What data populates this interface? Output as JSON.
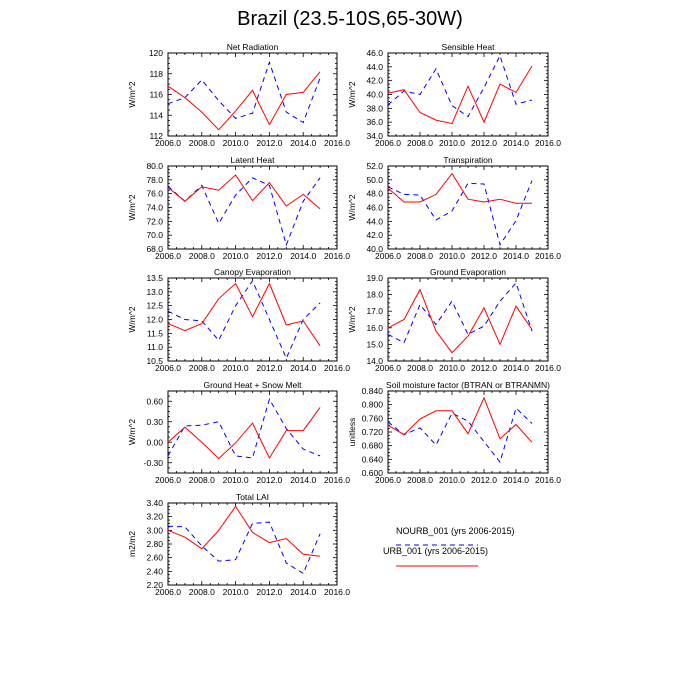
{
  "title": "Brazil (23.5-10S,65-30W)",
  "legend": [
    {
      "label": "NOURB_001 (yrs 2006-2015)",
      "style": "dashed",
      "color": "#0000ff"
    },
    {
      "label": "URB_001 (yrs 2006-2015)",
      "style": "solid",
      "color": "#ff0000"
    }
  ],
  "chart_data": [
    {
      "type": "line",
      "title": "Net Radiation",
      "ylabel": "W/m^2",
      "x": [
        2006,
        2007,
        2008,
        2009,
        2010,
        2011,
        2012,
        2013,
        2014,
        2015
      ],
      "xlim": [
        2006,
        2016
      ],
      "xticks": [
        "2006.0",
        "2008.0",
        "2010.0",
        "2012.0",
        "2014.0",
        "2016.0"
      ],
      "ylim": [
        112,
        120
      ],
      "yticks": [
        "112",
        "114",
        "116",
        "118",
        "120"
      ],
      "series": [
        {
          "name": "NOURB_001 (yrs 2006-2015)",
          "values": [
            115.1,
            115.7,
            117.4,
            115.4,
            113.7,
            114.2,
            119.1,
            114.3,
            113.3,
            117.6
          ]
        },
        {
          "name": "URB_001 (yrs 2006-2015)",
          "values": [
            116.8,
            115.7,
            114.3,
            112.6,
            114.4,
            116.4,
            113.1,
            116.0,
            116.2,
            118.2
          ]
        }
      ]
    },
    {
      "type": "line",
      "title": "Sensible Heat",
      "ylabel": "W/m^2",
      "x": [
        2006,
        2007,
        2008,
        2009,
        2010,
        2011,
        2012,
        2013,
        2014,
        2015
      ],
      "xlim": [
        2006,
        2016
      ],
      "xticks": [
        "2006.0",
        "2008.0",
        "2010.0",
        "2012.0",
        "2014.0",
        "2016.0"
      ],
      "ylim": [
        34,
        46
      ],
      "yticks": [
        "34.0",
        "36.0",
        "38.0",
        "40.0",
        "42.0",
        "44.0",
        "46.0"
      ],
      "series": [
        {
          "name": "NOURB_001 (yrs 2006-2015)",
          "values": [
            38.5,
            40.5,
            40.0,
            43.7,
            38.4,
            36.8,
            41.0,
            45.6,
            38.6,
            39.2
          ]
        },
        {
          "name": "URB_001 (yrs 2006-2015)",
          "values": [
            40.2,
            40.7,
            37.4,
            36.3,
            35.8,
            41.2,
            36.0,
            41.5,
            40.3,
            44.1
          ]
        }
      ]
    },
    {
      "type": "line",
      "title": "Latent Heat",
      "ylabel": "W/m^2",
      "x": [
        2006,
        2007,
        2008,
        2009,
        2010,
        2011,
        2012,
        2013,
        2014,
        2015
      ],
      "xlim": [
        2006,
        2016
      ],
      "xticks": [
        "2006.0",
        "2008.0",
        "2010.0",
        "2012.0",
        "2014.0",
        "2016.0"
      ],
      "ylim": [
        68,
        80
      ],
      "yticks": [
        "68.0",
        "70.0",
        "72.0",
        "74.0",
        "76.0",
        "78.0",
        "80.0"
      ],
      "series": [
        {
          "name": "NOURB_001 (yrs 2006-2015)",
          "values": [
            77.1,
            74.9,
            77.2,
            71.7,
            75.8,
            78.3,
            77.2,
            68.6,
            74.9,
            78.3
          ]
        },
        {
          "name": "URB_001 (yrs 2006-2015)",
          "values": [
            76.9,
            74.9,
            77.0,
            76.5,
            78.7,
            75.0,
            77.6,
            74.2,
            75.9,
            73.8
          ]
        }
      ]
    },
    {
      "type": "line",
      "title": "Transpiration",
      "ylabel": "W/m^2",
      "x": [
        2006,
        2007,
        2008,
        2009,
        2010,
        2011,
        2012,
        2013,
        2014,
        2015
      ],
      "xlim": [
        2006,
        2016
      ],
      "xticks": [
        "2006.0",
        "2008.0",
        "2010.0",
        "2012.0",
        "2014.0",
        "2016.0"
      ],
      "ylim": [
        40,
        52
      ],
      "yticks": [
        "40.0",
        "42.0",
        "44.0",
        "46.0",
        "48.0",
        "50.0",
        "52.0"
      ],
      "series": [
        {
          "name": "NOURB_001 (yrs 2006-2015)",
          "values": [
            49.0,
            47.9,
            47.8,
            44.2,
            45.5,
            49.5,
            49.4,
            40.6,
            44.1,
            49.9
          ]
        },
        {
          "name": "URB_001 (yrs 2006-2015)",
          "values": [
            48.8,
            46.8,
            46.8,
            47.9,
            50.9,
            47.2,
            46.8,
            47.2,
            46.6,
            46.6
          ]
        }
      ]
    },
    {
      "type": "line",
      "title": "Canopy Evaporation",
      "ylabel": "W/m^2",
      "x": [
        2006,
        2007,
        2008,
        2009,
        2010,
        2011,
        2012,
        2013,
        2014,
        2015
      ],
      "xlim": [
        2006,
        2016
      ],
      "xticks": [
        "2006.0",
        "2008.0",
        "2010.0",
        "2012.0",
        "2014.0",
        "2016.0"
      ],
      "ylim": [
        10.5,
        13.5
      ],
      "yticks": [
        "10.5",
        "11.0",
        "11.5",
        "12.0",
        "12.5",
        "13.0",
        "13.5"
      ],
      "series": [
        {
          "name": "NOURB_001 (yrs 2006-2015)",
          "values": [
            12.3,
            12.0,
            11.95,
            11.25,
            12.5,
            13.4,
            12.0,
            10.6,
            12.0,
            12.6
          ]
        },
        {
          "name": "URB_001 (yrs 2006-2015)",
          "values": [
            11.85,
            11.6,
            11.85,
            12.75,
            13.3,
            12.1,
            13.3,
            11.8,
            11.95,
            11.05
          ]
        }
      ]
    },
    {
      "type": "line",
      "title": "Ground Evaporation",
      "ylabel": "W/m^2",
      "x": [
        2006,
        2007,
        2008,
        2009,
        2010,
        2011,
        2012,
        2013,
        2014,
        2015
      ],
      "xlim": [
        2006,
        2016
      ],
      "xticks": [
        "2006.0",
        "2008.0",
        "2010.0",
        "2012.0",
        "2014.0",
        "2016.0"
      ],
      "ylim": [
        14,
        19
      ],
      "yticks": [
        "14.0",
        "15.0",
        "16.0",
        "17.0",
        "18.0",
        "19.0"
      ],
      "series": [
        {
          "name": "NOURB_001 (yrs 2006-2015)",
          "values": [
            15.6,
            15.1,
            17.4,
            16.2,
            17.6,
            15.6,
            16.1,
            17.6,
            18.7,
            15.8
          ]
        },
        {
          "name": "URB_001 (yrs 2006-2015)",
          "values": [
            16.0,
            16.5,
            18.3,
            15.8,
            14.5,
            15.5,
            17.2,
            15.0,
            17.3,
            15.9
          ]
        }
      ]
    },
    {
      "type": "line",
      "title": "Ground Heat + Snow Melt",
      "ylabel": "W/m^2",
      "x": [
        2006,
        2007,
        2008,
        2009,
        2010,
        2011,
        2012,
        2013,
        2014,
        2015
      ],
      "xlim": [
        2006,
        2016
      ],
      "xticks": [
        "2006.0",
        "2008.0",
        "2010.0",
        "2012.0",
        "2014.0",
        "2016.0"
      ],
      "ylim": [
        -0.45,
        0.75
      ],
      "yticks": [
        "-0.30",
        "0.00",
        "0.30",
        "0.60"
      ],
      "series": [
        {
          "name": "NOURB_001 (yrs 2006-2015)",
          "values": [
            -0.2,
            0.24,
            0.25,
            0.3,
            -0.2,
            -0.23,
            0.63,
            0.2,
            -0.1,
            -0.2
          ]
        },
        {
          "name": "URB_001 (yrs 2006-2015)",
          "values": [
            0.0,
            0.22,
            0.0,
            -0.24,
            -0.01,
            0.28,
            -0.23,
            0.17,
            0.17,
            0.51
          ]
        }
      ]
    },
    {
      "type": "line",
      "title": "Soil moisture factor (BTRAN or BTRANMN)",
      "ylabel": "unitless",
      "x": [
        2006,
        2007,
        2008,
        2009,
        2010,
        2011,
        2012,
        2013,
        2014,
        2015
      ],
      "xlim": [
        2006,
        2016
      ],
      "xticks": [
        "2006.0",
        "2008.0",
        "2010.0",
        "2012.0",
        "2014.0",
        "2016.0"
      ],
      "ylim": [
        0.6,
        0.84
      ],
      "yticks": [
        "0.600",
        "0.640",
        "0.680",
        "0.720",
        "0.760",
        "0.800",
        "0.840"
      ],
      "series": [
        {
          "name": "NOURB_001 (yrs 2006-2015)",
          "values": [
            0.75,
            0.712,
            0.732,
            0.682,
            0.775,
            0.752,
            0.692,
            0.632,
            0.79,
            0.745
          ]
        },
        {
          "name": "URB_001 (yrs 2006-2015)",
          "values": [
            0.74,
            0.712,
            0.758,
            0.782,
            0.782,
            0.715,
            0.82,
            0.7,
            0.742,
            0.69
          ]
        }
      ]
    },
    {
      "type": "line",
      "title": "Total LAI",
      "ylabel": "m2/m2",
      "x": [
        2006,
        2007,
        2008,
        2009,
        2010,
        2011,
        2012,
        2013,
        2014,
        2015
      ],
      "xlim": [
        2006,
        2016
      ],
      "xticks": [
        "2006.0",
        "2008.0",
        "2010.0",
        "2012.0",
        "2014.0",
        "2016.0"
      ],
      "ylim": [
        2.2,
        3.4
      ],
      "yticks": [
        "2.20",
        "2.40",
        "2.60",
        "2.80",
        "3.00",
        "3.20",
        "3.40"
      ],
      "series": [
        {
          "name": "NOURB_001 (yrs 2006-2015)",
          "values": [
            3.06,
            3.05,
            2.77,
            2.55,
            2.57,
            3.1,
            3.12,
            2.52,
            2.37,
            2.95
          ]
        },
        {
          "name": "URB_001 (yrs 2006-2015)",
          "values": [
            3.0,
            2.9,
            2.73,
            3.0,
            3.35,
            2.97,
            2.82,
            2.88,
            2.65,
            2.62
          ]
        }
      ]
    }
  ]
}
